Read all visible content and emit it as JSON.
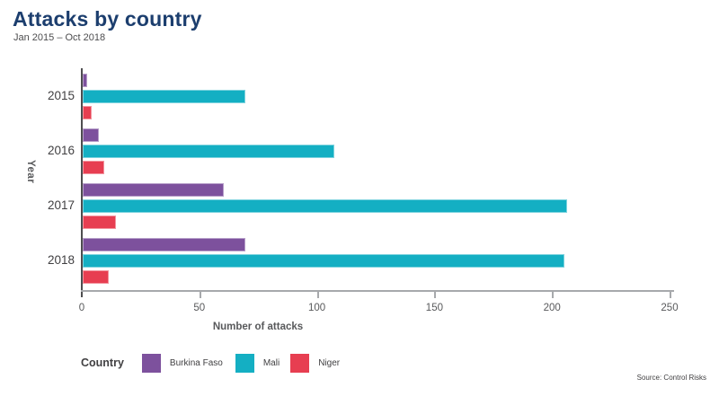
{
  "header": {
    "title": "Attacks by country",
    "subtitle": "Jan 2015 – Oct 2018"
  },
  "axes": {
    "x_label": "Number of attacks",
    "y_label": "Year"
  },
  "legend": {
    "title": "Country"
  },
  "footer": {
    "source": "Source: Control Risks"
  },
  "colors": {
    "title_navy": "#1c3e6e",
    "burkina_faso": "#7d519d",
    "mali": "#14afc3",
    "niger": "#e73e51",
    "axis_gray": "#a7a9ac",
    "text_gray": "#58595b"
  },
  "chart_data": {
    "type": "bar",
    "orientation": "horizontal",
    "title": "Attacks by country",
    "subtitle": "Jan 2015 – Oct 2018",
    "categories": [
      "2015",
      "2016",
      "2017",
      "2018"
    ],
    "series": [
      {
        "name": "Burkina Faso",
        "color": "#7d519d",
        "values": [
          2,
          7,
          60,
          69
        ]
      },
      {
        "name": "Mali",
        "color": "#14afc3",
        "values": [
          69,
          107,
          206,
          205
        ]
      },
      {
        "name": "Niger",
        "color": "#e73e51",
        "values": [
          4,
          9,
          14,
          11
        ]
      }
    ],
    "xlabel": "Number of attacks",
    "ylabel": "Year",
    "xlim": [
      0,
      250
    ],
    "xticks": [
      0,
      50,
      100,
      150,
      200,
      250
    ],
    "grid": false,
    "legend_title": "Country",
    "legend_position": "bottom",
    "source": "Source: Control Risks"
  }
}
